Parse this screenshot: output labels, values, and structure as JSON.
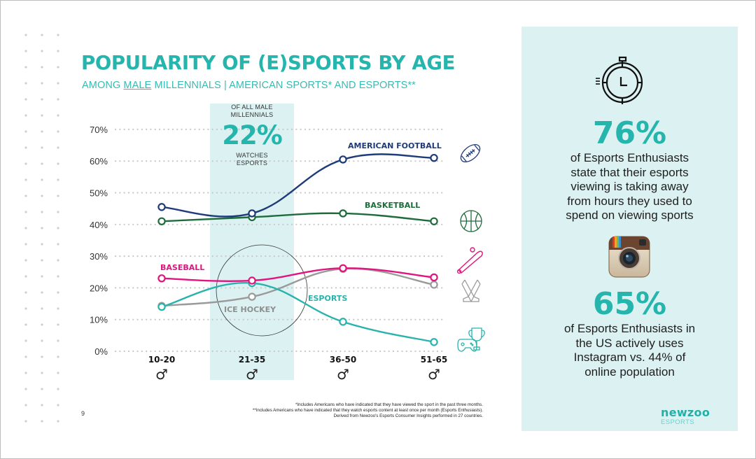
{
  "page": {
    "title": "POPULARITY OF (E)SPORTS BY AGE",
    "subtitle_prefix": "AMONG ",
    "subtitle_underlined": "MALE",
    "subtitle_suffix": " MILLENNIALS | AMERICAN SPORTS* AND ESPORTS**",
    "page_number": "9"
  },
  "callout": {
    "top_text_line1": "OF ALL MALE",
    "top_text_line2": "MILLENNIALS",
    "value": "22%",
    "bottom_text_line1": "WATCHES",
    "bottom_text_line2": "ESPORTS"
  },
  "footnotes": [
    "*Includes Americans who have indicated that they have viewed the sport in the past three months.",
    "**Includes Americans who have indicated that they watch esports content at least once per month (Esports Enthusiasts).",
    "Derived from Newzoo's Esports Consumer Insights performed in 27 countries."
  ],
  "side_panel": {
    "stat1": {
      "icon": "stopwatch-icon",
      "value": "76%",
      "lines": [
        "of Esports Enthusiasts",
        "state that their esports",
        "viewing is taking away",
        "from hours they used to",
        "spend on viewing sports"
      ]
    },
    "stat2": {
      "icon": "instagram-icon",
      "value": "65%",
      "lines": [
        "of Esports Enthusiasts in",
        "the US actively uses",
        "Instagram vs. 44% of",
        "online population"
      ]
    },
    "brand": {
      "name": "newzoo",
      "sub": "ESPORTS"
    }
  },
  "colors": {
    "accent": "#26b5ad",
    "panel_bg": "#dcf2f2",
    "football": "#1f3c7a",
    "basketball": "#1e6b3c",
    "baseball": "#e0157f",
    "ice_hockey": "#9a9a9a",
    "esports": "#2ab3ad"
  },
  "chart_data": {
    "type": "line",
    "title": "POPULARITY OF (E)SPORTS BY AGE",
    "xlabel": "",
    "ylabel": "",
    "categories": [
      "10-20",
      "21-35",
      "36-50",
      "51-65"
    ],
    "category_symbol": "♂",
    "ylim": [
      0,
      70
    ],
    "yticks": [
      0,
      10,
      20,
      30,
      40,
      50,
      60,
      70
    ],
    "ytick_labels": [
      "0%",
      "10%",
      "20%",
      "30%",
      "40%",
      "50%",
      "60%",
      "70%"
    ],
    "grid": "horizontal-dotted",
    "highlight_category": "21-35",
    "series": [
      {
        "name": "AMERICAN FOOTBALL",
        "key": "football",
        "icon": "football-icon",
        "values": [
          45.5,
          43.5,
          60.5,
          61
        ]
      },
      {
        "name": "BASKETBALL",
        "key": "basketball",
        "icon": "basketball-icon",
        "values": [
          41,
          42.3,
          43.5,
          41
        ]
      },
      {
        "name": "BASEBALL",
        "key": "baseball",
        "icon": "baseball-bat-icon",
        "values": [
          23,
          22.3,
          26.2,
          23.3
        ]
      },
      {
        "name": "ICE HOCKEY",
        "key": "ice_hockey",
        "icon": "hockey-sticks-icon",
        "values": [
          14.3,
          17.2,
          26,
          21
        ]
      },
      {
        "name": "ESPORTS",
        "key": "esports",
        "icon": "game-controller-trophy-icon",
        "values": [
          14,
          21.5,
          9.3,
          2.9
        ]
      }
    ],
    "annotations": [
      "ICE HOCKEY label circled around 21-35"
    ]
  }
}
